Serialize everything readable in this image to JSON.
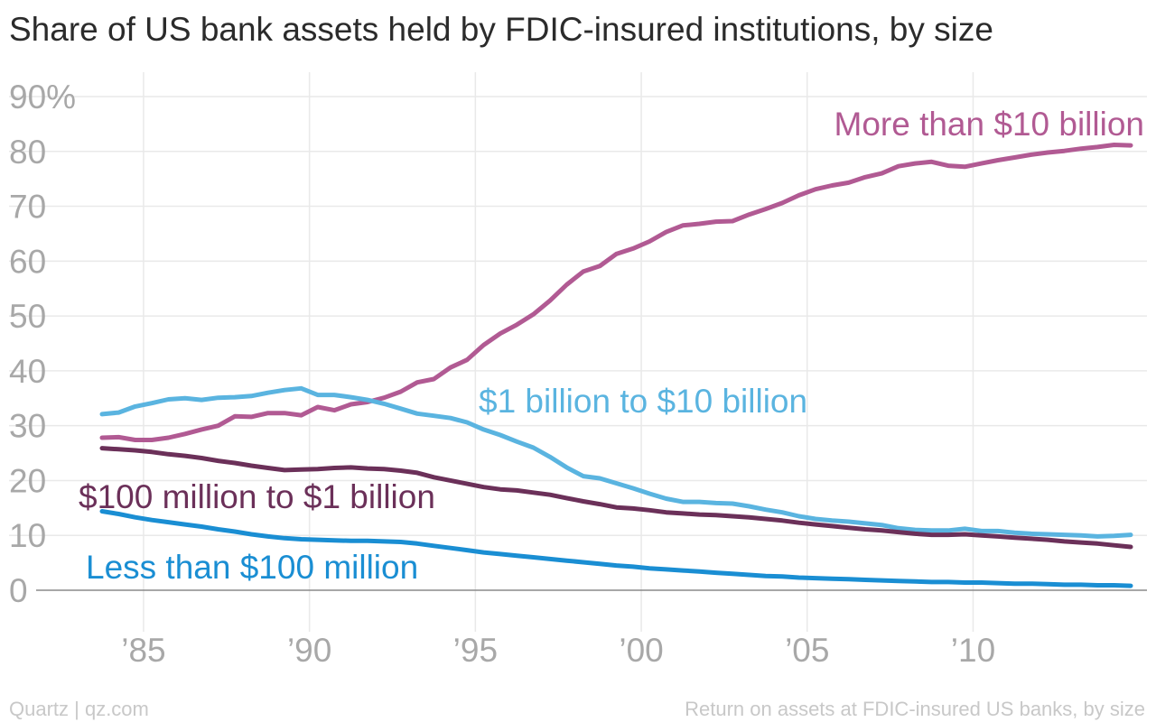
{
  "title": "Share of US bank assets held by FDIC-insured institutions, by size",
  "footer": {
    "source": "Quartz | qz.com",
    "note": "Return on assets at FDIC-insured US banks, by size"
  },
  "chart_data": {
    "type": "line",
    "title": "Share of US bank assets held by FDIC-insured institutions, by size",
    "xlim": [
      1983.75,
      2014.75
    ],
    "ylim": [
      0,
      90
    ],
    "grid": true,
    "yticks": [
      {
        "value": 0,
        "label": "0"
      },
      {
        "value": 10,
        "label": "10"
      },
      {
        "value": 20,
        "label": "20"
      },
      {
        "value": 30,
        "label": "30"
      },
      {
        "value": 40,
        "label": "40"
      },
      {
        "value": 50,
        "label": "50"
      },
      {
        "value": 60,
        "label": "60"
      },
      {
        "value": 70,
        "label": "70"
      },
      {
        "value": 80,
        "label": "80"
      },
      {
        "value": 90,
        "label": "90%"
      }
    ],
    "xticks": [
      {
        "value": 1985,
        "label": "’85"
      },
      {
        "value": 1990,
        "label": "’90"
      },
      {
        "value": 1995,
        "label": "’95"
      },
      {
        "value": 2000,
        "label": "’00"
      },
      {
        "value": 2005,
        "label": "’05"
      },
      {
        "value": 2010,
        "label": "’10"
      }
    ],
    "series": [
      {
        "name": "More than $10 billion",
        "color": "#b15a93",
        "x": [
          1983.75,
          1984.25,
          1984.75,
          1985.25,
          1985.75,
          1986.25,
          1986.75,
          1987.25,
          1987.75,
          1988.25,
          1988.75,
          1989.25,
          1989.75,
          1990.25,
          1990.75,
          1991.25,
          1991.75,
          1992.25,
          1992.75,
          1993.25,
          1993.75,
          1994.25,
          1994.75,
          1995.25,
          1995.75,
          1996.25,
          1996.75,
          1997.25,
          1997.75,
          1998.25,
          1998.75,
          1999.25,
          1999.75,
          2000.25,
          2000.75,
          2001.25,
          2001.75,
          2002.25,
          2002.75,
          2003.25,
          2003.75,
          2004.25,
          2004.75,
          2005.25,
          2005.75,
          2006.25,
          2006.75,
          2007.25,
          2007.75,
          2008.25,
          2008.75,
          2009.25,
          2009.75,
          2010.25,
          2010.75,
          2011.25,
          2011.75,
          2012.25,
          2012.75,
          2013.25,
          2013.75,
          2014.25,
          2014.75
        ],
        "values": [
          27.8,
          27.9,
          27.4,
          27.4,
          27.8,
          28.5,
          29.3,
          30.0,
          31.7,
          31.6,
          32.3,
          32.3,
          31.9,
          33.4,
          32.8,
          33.9,
          34.3,
          35.1,
          36.2,
          37.9,
          38.5,
          40.6,
          42.0,
          44.7,
          46.8,
          48.4,
          50.3,
          52.8,
          55.7,
          58.1,
          59.1,
          61.3,
          62.3,
          63.6,
          65.3,
          66.5,
          66.8,
          67.2,
          67.3,
          68.5,
          69.5,
          70.6,
          72.0,
          73.1,
          73.8,
          74.3,
          75.3,
          76.0,
          77.3,
          77.8,
          78.1,
          77.4,
          77.2,
          77.8,
          78.4,
          78.9,
          79.4,
          79.8,
          80.1,
          80.5,
          80.8,
          81.2,
          81.1
        ]
      },
      {
        "name": "$1 billion to $10 billion",
        "color": "#5ab4e0",
        "x": [
          1983.75,
          1984.25,
          1984.75,
          1985.25,
          1985.75,
          1986.25,
          1986.75,
          1987.25,
          1987.75,
          1988.25,
          1988.75,
          1989.25,
          1989.75,
          1990.25,
          1990.75,
          1991.25,
          1991.75,
          1992.25,
          1992.75,
          1993.25,
          1993.75,
          1994.25,
          1994.75,
          1995.25,
          1995.75,
          1996.25,
          1996.75,
          1997.25,
          1997.75,
          1998.25,
          1998.75,
          1999.25,
          1999.75,
          2000.25,
          2000.75,
          2001.25,
          2001.75,
          2002.25,
          2002.75,
          2003.25,
          2003.75,
          2004.25,
          2004.75,
          2005.25,
          2005.75,
          2006.25,
          2006.75,
          2007.25,
          2007.75,
          2008.25,
          2008.75,
          2009.25,
          2009.75,
          2010.25,
          2010.75,
          2011.25,
          2011.75,
          2012.25,
          2012.75,
          2013.25,
          2013.75,
          2014.25,
          2014.75
        ],
        "values": [
          32.1,
          32.4,
          33.5,
          34.1,
          34.8,
          35.0,
          34.7,
          35.1,
          35.2,
          35.4,
          36.0,
          36.5,
          36.8,
          35.6,
          35.6,
          35.2,
          34.7,
          34.0,
          33.1,
          32.2,
          31.8,
          31.4,
          30.6,
          29.3,
          28.3,
          27.1,
          26.0,
          24.3,
          22.4,
          20.8,
          20.4,
          19.5,
          18.6,
          17.6,
          16.7,
          16.1,
          16.1,
          15.9,
          15.8,
          15.3,
          14.7,
          14.2,
          13.5,
          13.0,
          12.7,
          12.5,
          12.2,
          11.9,
          11.3,
          11.0,
          10.9,
          10.9,
          11.2,
          10.8,
          10.8,
          10.5,
          10.3,
          10.2,
          10.1,
          10.0,
          9.8,
          9.9,
          10.1
        ]
      },
      {
        "name": "$100 million to $1 billion",
        "color": "#6b3059",
        "x": [
          1983.75,
          1984.25,
          1984.75,
          1985.25,
          1985.75,
          1986.25,
          1986.75,
          1987.25,
          1987.75,
          1988.25,
          1988.75,
          1989.25,
          1989.75,
          1990.25,
          1990.75,
          1991.25,
          1991.75,
          1992.25,
          1992.75,
          1993.25,
          1993.75,
          1994.25,
          1994.75,
          1995.25,
          1995.75,
          1996.25,
          1996.75,
          1997.25,
          1997.75,
          1998.25,
          1998.75,
          1999.25,
          1999.75,
          2000.25,
          2000.75,
          2001.25,
          2001.75,
          2002.25,
          2002.75,
          2003.25,
          2003.75,
          2004.25,
          2004.75,
          2005.25,
          2005.75,
          2006.25,
          2006.75,
          2007.25,
          2007.75,
          2008.25,
          2008.75,
          2009.25,
          2009.75,
          2010.25,
          2010.75,
          2011.25,
          2011.75,
          2012.25,
          2012.75,
          2013.25,
          2013.75,
          2014.25,
          2014.75
        ],
        "values": [
          25.9,
          25.7,
          25.5,
          25.2,
          24.8,
          24.5,
          24.1,
          23.6,
          23.2,
          22.7,
          22.3,
          21.9,
          22.0,
          22.1,
          22.3,
          22.4,
          22.2,
          22.1,
          21.8,
          21.4,
          20.6,
          20.0,
          19.4,
          18.8,
          18.4,
          18.2,
          17.8,
          17.4,
          16.8,
          16.2,
          15.7,
          15.1,
          14.9,
          14.6,
          14.2,
          14.0,
          13.8,
          13.7,
          13.5,
          13.3,
          13.0,
          12.7,
          12.3,
          12.0,
          11.7,
          11.4,
          11.1,
          10.9,
          10.6,
          10.3,
          10.1,
          10.1,
          10.2,
          10.0,
          9.8,
          9.6,
          9.4,
          9.2,
          8.9,
          8.7,
          8.5,
          8.2,
          7.9
        ]
      },
      {
        "name": "Less than $100 million",
        "color": "#1a8ed3",
        "x": [
          1983.75,
          1984.25,
          1984.75,
          1985.25,
          1985.75,
          1986.25,
          1986.75,
          1987.25,
          1987.75,
          1988.25,
          1988.75,
          1989.25,
          1989.75,
          1990.25,
          1990.75,
          1991.25,
          1991.75,
          1992.25,
          1992.75,
          1993.25,
          1993.75,
          1994.25,
          1994.75,
          1995.25,
          1995.75,
          1996.25,
          1996.75,
          1997.25,
          1997.75,
          1998.25,
          1998.75,
          1999.25,
          1999.75,
          2000.25,
          2000.75,
          2001.25,
          2001.75,
          2002.25,
          2002.75,
          2003.25,
          2003.75,
          2004.25,
          2004.75,
          2005.25,
          2005.75,
          2006.25,
          2006.75,
          2007.25,
          2007.75,
          2008.25,
          2008.75,
          2009.25,
          2009.75,
          2010.25,
          2010.75,
          2011.25,
          2011.75,
          2012.25,
          2012.75,
          2013.25,
          2013.75,
          2014.25,
          2014.75
        ],
        "values": [
          14.4,
          13.9,
          13.3,
          12.8,
          12.4,
          12.0,
          11.6,
          11.1,
          10.7,
          10.2,
          9.8,
          9.5,
          9.3,
          9.2,
          9.1,
          9.0,
          9.0,
          8.9,
          8.8,
          8.5,
          8.1,
          7.7,
          7.3,
          6.9,
          6.6,
          6.3,
          6.0,
          5.7,
          5.4,
          5.1,
          4.8,
          4.5,
          4.3,
          4.0,
          3.8,
          3.6,
          3.4,
          3.2,
          3.0,
          2.8,
          2.6,
          2.5,
          2.3,
          2.2,
          2.1,
          2.0,
          1.9,
          1.8,
          1.7,
          1.6,
          1.5,
          1.5,
          1.4,
          1.4,
          1.3,
          1.2,
          1.2,
          1.1,
          1.0,
          1.0,
          0.9,
          0.9,
          0.8
        ]
      }
    ]
  }
}
